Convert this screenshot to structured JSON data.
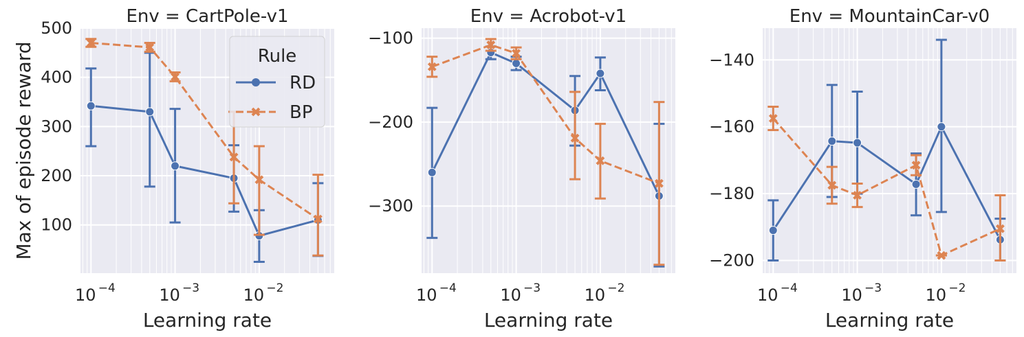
{
  "chart_data": [
    {
      "type": "line",
      "title": "Env = CartPole-v1",
      "xlabel": "Learning rate",
      "ylabel": "Max of episode reward",
      "xscale": "log",
      "xlim": [
        7.5e-05,
        0.078
      ],
      "ylim": [
        2,
        500
      ],
      "yticks": [
        100,
        200,
        300,
        400,
        500
      ],
      "ytick_labels": [
        "100",
        "200",
        "300",
        "400",
        "500"
      ],
      "xticks": [
        0.0001,
        0.001,
        0.01
      ],
      "xtick_labels": [
        "10",
        "10",
        "10"
      ],
      "xtick_exponents": [
        "−4",
        "−3",
        "−2"
      ],
      "grid": true,
      "legend": {
        "title": "Rule",
        "placement": "top-right"
      },
      "series": [
        {
          "name": "RD",
          "x": [
            0.0001,
            0.0005,
            0.001,
            0.005,
            0.01,
            0.05
          ],
          "values": [
            342,
            330,
            220,
            195,
            78,
            110
          ],
          "err_low": [
            260,
            178,
            105,
            127,
            25,
            37
          ],
          "err_high": [
            418,
            450,
            336,
            262,
            130,
            185
          ]
        },
        {
          "name": "BP",
          "x": [
            0.0001,
            0.0005,
            0.001,
            0.005,
            0.01,
            0.05
          ],
          "values": [
            470,
            461,
            401,
            238,
            192,
            112
          ],
          "err_low": [
            462,
            452,
            392,
            144,
            80,
            38
          ],
          "err_high": [
            478,
            470,
            410,
            330,
            260,
            202
          ]
        }
      ]
    },
    {
      "type": "line",
      "title": "Env = Acrobot-v1",
      "xlabel": "Learning rate",
      "ylabel": "",
      "xscale": "log",
      "xlim": [
        7.5e-05,
        0.078
      ],
      "ylim": [
        -380,
        -88
      ],
      "yticks": [
        -300,
        -200,
        -100
      ],
      "ytick_labels": [
        "−300",
        "−200",
        "−100"
      ],
      "xticks": [
        0.0001,
        0.001,
        0.01
      ],
      "xtick_labels": [
        "10",
        "10",
        "10"
      ],
      "xtick_exponents": [
        "−4",
        "−3",
        "−2"
      ],
      "grid": true,
      "series": [
        {
          "name": "RD",
          "x": [
            0.0001,
            0.0005,
            0.001,
            0.005,
            0.01,
            0.05
          ],
          "values": [
            -260,
            -117,
            -130,
            -186,
            -142,
            -288
          ],
          "err_low": [
            -338,
            -125,
            -138,
            -228,
            -162,
            -372
          ],
          "err_high": [
            -183,
            -110,
            -122,
            -145,
            -123,
            -202
          ]
        },
        {
          "name": "BP",
          "x": [
            0.0001,
            0.0005,
            0.001,
            0.005,
            0.01,
            0.05
          ],
          "values": [
            -134,
            -108,
            -118,
            -219,
            -246,
            -273
          ],
          "err_low": [
            -146,
            -115,
            -125,
            -268,
            -291,
            -370
          ],
          "err_high": [
            -122,
            -101,
            -111,
            -164,
            -202,
            -176
          ]
        }
      ]
    },
    {
      "type": "line",
      "title": "Env = MountainCar-v0",
      "xlabel": "Learning rate",
      "ylabel": "",
      "xscale": "log",
      "xlim": [
        7.5e-05,
        0.078
      ],
      "ylim": [
        -203.8,
        -130.5
      ],
      "yticks": [
        -200,
        -180,
        -160,
        -140
      ],
      "ytick_labels": [
        "−200",
        "−180",
        "−160",
        "−140"
      ],
      "xticks": [
        0.0001,
        0.001,
        0.01
      ],
      "xtick_labels": [
        "10",
        "10",
        "10"
      ],
      "xtick_exponents": [
        "−4",
        "−3",
        "−2"
      ],
      "grid": true,
      "series": [
        {
          "name": "RD",
          "x": [
            0.0001,
            0.0005,
            0.001,
            0.005,
            0.01,
            0.05
          ],
          "values": [
            -191,
            -164.3,
            -164.8,
            -177.2,
            -160,
            -193.8
          ],
          "err_low": [
            -200,
            -181,
            -180,
            -186.5,
            -185.5,
            -200
          ],
          "err_high": [
            -182,
            -147.5,
            -149.5,
            -168,
            -134,
            -187.5
          ]
        },
        {
          "name": "BP",
          "x": [
            0.0001,
            0.0005,
            0.001,
            0.005,
            0.01,
            0.05
          ],
          "values": [
            -157.5,
            -177.5,
            -180.5,
            -171.5,
            -198.5,
            -190.5
          ],
          "err_low": [
            -161,
            -183,
            -184,
            -174.5,
            -198.5,
            -200
          ],
          "err_high": [
            -154,
            -172,
            -177,
            -168.5,
            -198.5,
            -180.5
          ]
        }
      ]
    }
  ],
  "colors": {
    "RD": "#4c72b0",
    "BP": "#dd8452",
    "panel_bg": "#eaeaf2",
    "grid": "#ffffff"
  }
}
